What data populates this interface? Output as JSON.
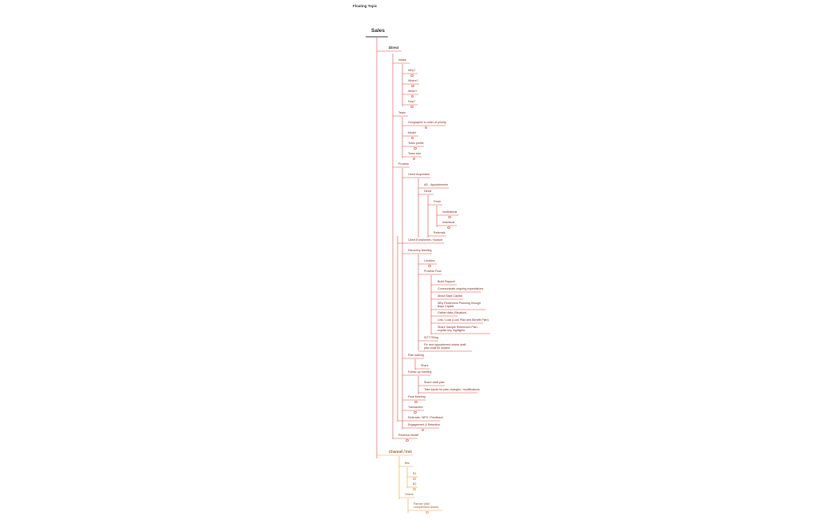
{
  "floating_topic": "Floating Topic",
  "root": "Sales",
  "colors": {
    "red_branch": "#e2463c",
    "orange_branch": "#f0a13a"
  },
  "branches": {
    "direct": "Direct",
    "channel": "Channel / Inst"
  },
  "nodes": {
    "intake": "Intake",
    "why": "Why?",
    "where": "Where?",
    "when": "When?",
    "how": "How?",
    "team": "Team",
    "geo": "Geographic to order of priority",
    "model": "Model",
    "team_profile": "Team profile",
    "team_size": "Team size",
    "process": "Process",
    "client_acq": "Client Acquisition",
    "ad_appts": "AD - Appointments",
    "direct_sub": "Direct",
    "fresh": "Fresh",
    "institutional": "Institutional",
    "individual": "Individual",
    "referrals": "Referrals",
    "client_dev": "Client Enrichment / Nurture",
    "discovery": "Discovery Meeting",
    "location": "Location",
    "process_flow": "Process Flow",
    "build_rapport": "Build Rapport",
    "communicate": "Communicate ongoing expectations",
    "about_us": "About Bays Capital",
    "why_retirement": "Why Retirement Planning through Bays Capital",
    "data_gather": "Gather data (Situation)",
    "lock_in": "Link / Lock (Lock Plan and Benefit Plan)",
    "share_sample": "Share Sample Retirement Plan - explain key highlights",
    "sot_filling": "SOT Filling",
    "fix_next": "Fix next appointment where draft plan shall be shared",
    "plan_making": "Plan making",
    "share": "Share",
    "followup": "Follow-up meeting",
    "share_draft": "Share draft plan",
    "take_inputs": "Take inputs for plan changes / modifications",
    "final_meeting": "Final Meeting",
    "transaction": "Transaction",
    "referrals_nps": "Referrals / NPS / Feedback",
    "engagement": "Engagement & Retention",
    "revenue_model": "Revenue Model",
    "bfsi": "Bfsi",
    "b1": "B1",
    "b2": "B2",
    "others": "Others",
    "partner": "Partner (Will complement Users)"
  }
}
